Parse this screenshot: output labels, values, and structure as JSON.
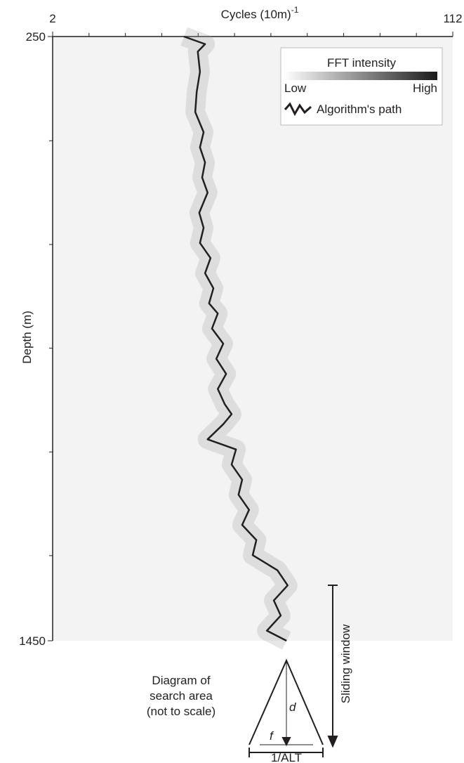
{
  "chart_data": {
    "type": "line",
    "xlabel": "Cycles (10m)",
    "xlabel_exponent": "-1",
    "ylabel": "Depth (m)",
    "xlim": [
      2,
      112
    ],
    "xticks": [
      2,
      112
    ],
    "xminorticks": [
      12,
      22,
      32,
      42,
      52,
      62,
      72,
      82,
      92,
      102
    ],
    "ylim": [
      250,
      1450
    ],
    "yticks": [
      250,
      1450
    ],
    "yminorticks": [
      457,
      663,
      869,
      1075,
      1281
    ],
    "x": [
      250,
      265,
      280,
      320,
      360,
      400,
      440,
      470,
      500,
      530,
      560,
      600,
      630,
      660,
      690,
      720,
      750,
      780,
      800,
      830,
      860,
      890,
      920,
      950,
      980,
      1000,
      1020,
      1050,
      1070,
      1100,
      1130,
      1160,
      1190,
      1220,
      1250,
      1280,
      1310,
      1340,
      1370,
      1400,
      1430,
      1450
    ],
    "series": [
      {
        "name": "Algorithm's path",
        "color": "#231f20",
        "values": [
          38.1,
          43.9,
          41.9,
          42.5,
          41.6,
          41.2,
          43.5,
          42.5,
          43.9,
          43.1,
          44.6,
          42.3,
          43.5,
          42.5,
          45.4,
          43.9,
          46.2,
          45.0,
          47.4,
          45.8,
          48.9,
          47.0,
          49.7,
          47.4,
          49.3,
          51.2,
          48.9,
          44.6,
          52.4,
          51.2,
          54.1,
          53.1,
          56.0,
          54.1,
          58.0,
          57.0,
          63.8,
          66.6,
          62.8,
          64.7,
          60.9,
          66.3
        ]
      }
    ],
    "legend": {
      "title": "FFT intensity",
      "low": "Low",
      "high": "High",
      "colormap": [
        "#ffffff",
        "#1a1a1a"
      ]
    },
    "annotations": {
      "diagram": [
        "Diagram of",
        "search area",
        "(not to scale)"
      ],
      "d": "d",
      "f": "f",
      "alt": "1/ALT",
      "window": "Sliding window"
    }
  }
}
